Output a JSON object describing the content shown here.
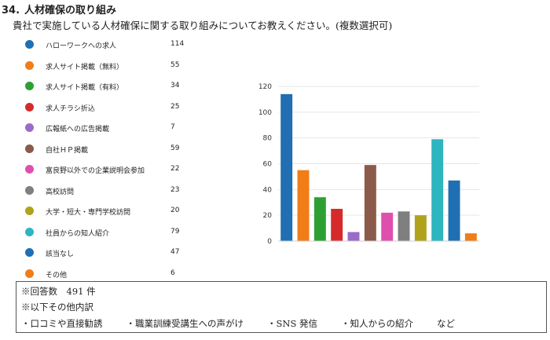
{
  "header": {
    "number": "34.",
    "title": "人材確保の取り組み",
    "question": "貴社で実施している人材確保に関する取り組みについてお教えください。(複数選択可)"
  },
  "chart_data": {
    "type": "bar",
    "categories": [
      "ハローワークへの求人",
      "求人サイト掲載（無料）",
      "求人サイト掲載（有料）",
      "求人チラシ折込",
      "広報紙への広告掲載",
      "自社ＨＰ掲載",
      "富良野以外での企業説明会参加",
      "高校訪問",
      "大学・短大・専門学校訪問",
      "社員からの知人紹介",
      "該当なし",
      "その他"
    ],
    "values": [
      114,
      55,
      34,
      25,
      7,
      59,
      22,
      23,
      20,
      79,
      47,
      6
    ],
    "colors": [
      "#1f6fb2",
      "#f07d16",
      "#2ea033",
      "#d62a2a",
      "#9b6bc9",
      "#8b5a4a",
      "#df4fae",
      "#7f7f7f",
      "#b0a21c",
      "#2db5c0",
      "#1f6fb2",
      "#f07d16"
    ],
    "ylim": [
      0,
      120
    ],
    "yticks": [
      "0",
      "20",
      "40",
      "60",
      "80",
      "100",
      "120"
    ],
    "grid": true,
    "legend": "left"
  },
  "notes": {
    "total": "※回答数　491 件",
    "breakdown_title": "※以下その他内訳",
    "items": [
      "・口コミや直接勧誘",
      "・職業訓練受講生への声がけ",
      "・SNS 発信",
      "・知人からの紹介"
    ],
    "suffix": "など"
  }
}
